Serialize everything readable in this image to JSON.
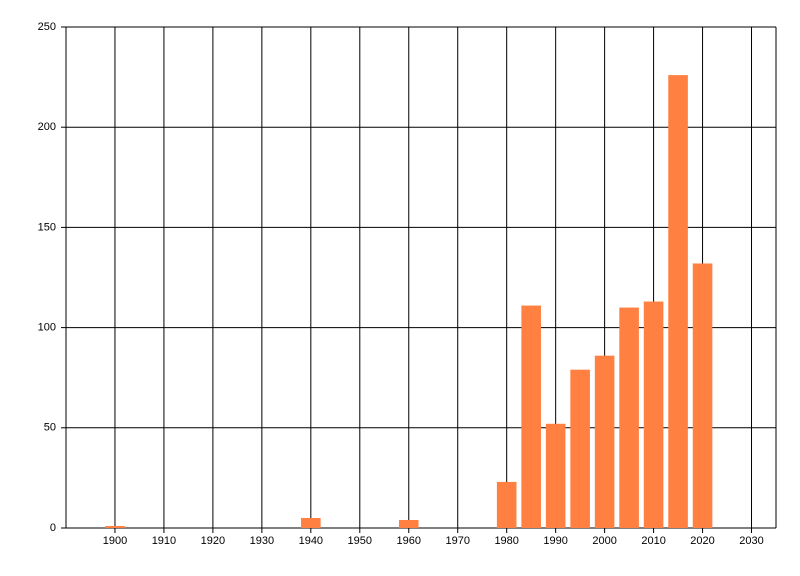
{
  "chart_data": {
    "type": "bar",
    "color": "#ff8040",
    "grid": true,
    "x": [
      1900,
      1940,
      1960,
      1980,
      1985,
      1990,
      1995,
      2000,
      2005,
      2010,
      2015,
      2020
    ],
    "values": [
      1,
      5,
      4,
      23,
      111,
      52,
      79,
      86,
      110,
      113,
      226,
      132
    ],
    "xlim": [
      1890,
      2035
    ],
    "xticks": [
      1900,
      1910,
      1920,
      1930,
      1940,
      1950,
      1960,
      1970,
      1980,
      1990,
      2000,
      2010,
      2020,
      2030
    ],
    "ylim": [
      0,
      250
    ],
    "yticks": [
      0,
      50,
      100,
      150,
      200,
      250
    ]
  }
}
